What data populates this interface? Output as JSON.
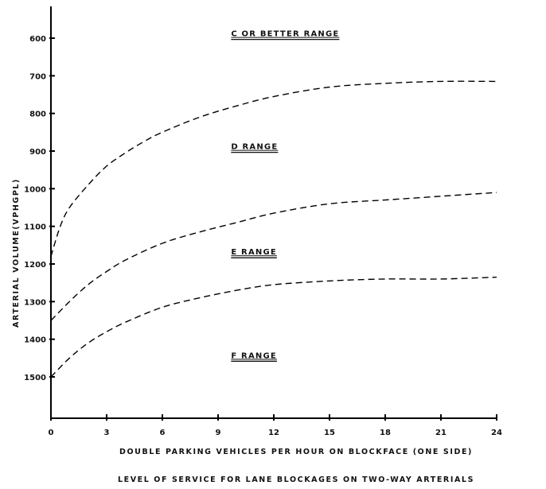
{
  "chart_data": {
    "type": "line",
    "title": "",
    "caption": "LEVEL OF SERVICE FOR LANE BLOCKAGES ON TWO-WAY ARTERIALS",
    "xlabel": "DOUBLE PARKING VEHICLES PER HOUR ON BLOCKFACE (ONE SIDE)",
    "ylabel": "ARTERIAL VOLUME(VPHGPL)",
    "xlim": [
      0,
      24
    ],
    "ylim": [
      1600,
      500
    ],
    "y_reversed": true,
    "grid": false,
    "x_ticks": [
      0,
      3,
      6,
      9,
      12,
      15,
      18,
      21,
      24
    ],
    "y_ticks": [
      600,
      700,
      800,
      900,
      1000,
      1100,
      1200,
      1300,
      1400,
      1500
    ],
    "region_labels": [
      {
        "text": "C OR BETTER RANGE",
        "x": 9.7,
        "y": 595
      },
      {
        "text": "D RANGE",
        "x": 9.7,
        "y": 895
      },
      {
        "text": "E RANGE",
        "x": 9.7,
        "y": 1175
      },
      {
        "text": "F RANGE",
        "x": 9.7,
        "y": 1450
      }
    ],
    "series": [
      {
        "line_style": "dashed",
        "x": [
          0,
          0.5,
          1,
          2,
          3,
          4,
          5,
          6,
          8,
          10,
          12,
          15,
          18,
          21,
          24
        ],
        "y": [
          1180,
          1100,
          1050,
          990,
          940,
          905,
          875,
          850,
          810,
          780,
          755,
          730,
          720,
          715,
          715
        ]
      },
      {
        "line_style": "dashed",
        "x": [
          0,
          1,
          2,
          3,
          4,
          6,
          8,
          10,
          12,
          15,
          18,
          21,
          24
        ],
        "y": [
          1350,
          1300,
          1255,
          1220,
          1190,
          1145,
          1115,
          1090,
          1065,
          1040,
          1030,
          1020,
          1010
        ]
      },
      {
        "line_style": "dashed",
        "x": [
          0,
          1,
          2,
          3,
          4,
          6,
          8,
          10,
          12,
          15,
          18,
          21,
          24
        ],
        "y": [
          1500,
          1450,
          1410,
          1380,
          1355,
          1315,
          1290,
          1270,
          1255,
          1245,
          1240,
          1240,
          1235
        ]
      }
    ]
  }
}
